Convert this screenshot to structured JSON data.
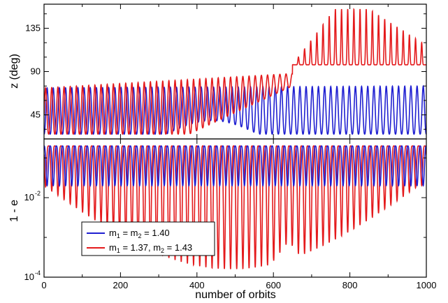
{
  "chart_data": [
    {
      "type": "line",
      "panel": "top",
      "ylabel": "z (deg)",
      "xlim": [
        0,
        1000
      ],
      "ylim": [
        20,
        160
      ],
      "yticks": [
        45,
        90,
        135
      ],
      "ytick_labels": [
        "45",
        "90",
        "135"
      ],
      "xtick_labels": [
        "0",
        "200",
        "400",
        "600",
        "800",
        "1000"
      ],
      "series": [
        {
          "name": "m1 = m2 = 1.40",
          "color": "#1f1fd1",
          "oscillations": 62,
          "description_values": {
            "min": 25,
            "max_start": 73,
            "max_end": 75,
            "peak_near_600": 75
          }
        },
        {
          "name": "m1 = 1.37, m2 = 1.43",
          "color": "#e41a1c",
          "oscillations": 62,
          "description_values": {
            "min_start": 25,
            "max_start": 73,
            "max_at_620": 88,
            "flip_x": 650,
            "max_after_flip": 155,
            "min_after_flip": 95
          }
        }
      ]
    },
    {
      "type": "line",
      "panel": "bottom",
      "ylabel": "1 - e",
      "xlabel": "number of orbits",
      "xlim": [
        0,
        1000
      ],
      "yscale": "log",
      "ylim": [
        0.0001,
        0.3
      ],
      "ytick_labels": [
        {
          "base": "10",
          "exp": "-2"
        },
        {
          "base": "10",
          "exp": "-4"
        }
      ],
      "xticks": [
        0,
        200,
        400,
        600,
        800,
        1000
      ],
      "xtick_labels": [
        "0",
        "200",
        "400",
        "600",
        "800",
        "1000"
      ],
      "series": [
        {
          "name": "m1 = m2 = 1.40",
          "color": "#1f1fd1",
          "description_values": {
            "max": 0.2,
            "min": 0.02
          }
        },
        {
          "name": "m1 = 1.37, m2 = 1.43",
          "color": "#e41a1c",
          "description_values": {
            "max": 0.2,
            "min_deepest": 0.00016,
            "min_deepest_x": 590
          }
        }
      ]
    }
  ],
  "legend": {
    "placement": "bottom-left of lower panel",
    "entries": [
      {
        "parts": [
          [
            "m",
            ""
          ],
          [
            "1",
            "sub"
          ],
          [
            " = m",
            ""
          ],
          [
            "2",
            "sub"
          ],
          [
            " = 1.40",
            ""
          ]
        ],
        "color": "#1f1fd1"
      },
      {
        "parts": [
          [
            "m",
            ""
          ],
          [
            "1",
            "sub"
          ],
          [
            " = 1.37, m",
            ""
          ],
          [
            "2",
            "sub"
          ],
          [
            " = 1.43",
            ""
          ]
        ],
        "color": "#e41a1c"
      }
    ]
  }
}
